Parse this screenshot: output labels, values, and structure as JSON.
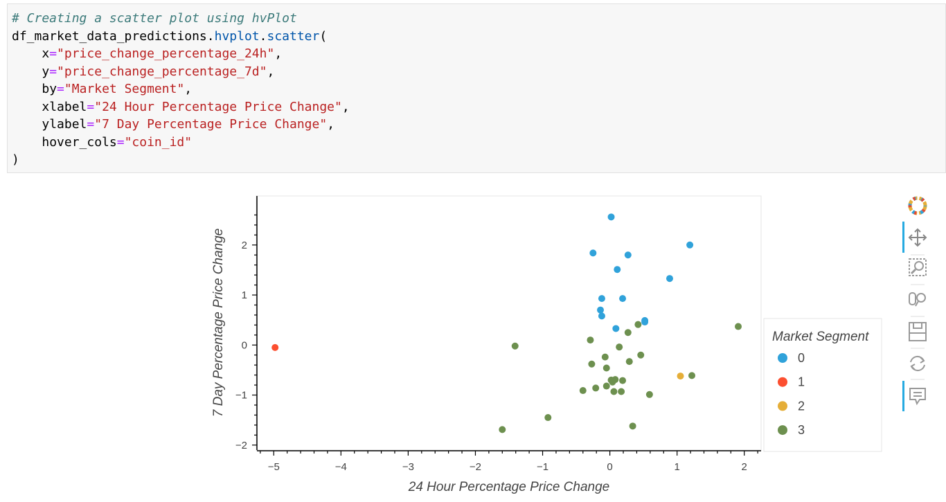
{
  "code": {
    "comment": "# Creating a scatter plot using hvPlot",
    "line2_obj": "df_market_data_predictions.",
    "line2_attr1": "hvplot",
    "line2_dot": ".",
    "line2_attr2": "scatter",
    "line2_paren": "(",
    "args": [
      {
        "key": "x",
        "val": "\"price_change_percentage_24h\"",
        "trail": ","
      },
      {
        "key": "y",
        "val": "\"price_change_percentage_7d\"",
        "trail": ","
      },
      {
        "key": "by",
        "val": "\"Market Segment\"",
        "trail": ","
      },
      {
        "key": "xlabel",
        "val": "\"24 Hour Percentage Price Change\"",
        "trail": ","
      },
      {
        "key": "ylabel",
        "val": "\"7 Day Percentage Price Change\"",
        "trail": ","
      },
      {
        "key": "hover_cols",
        "val": "\"coin_id\"",
        "trail": ""
      }
    ],
    "eq": "=",
    "close": ")"
  },
  "chart_data": {
    "type": "scatter",
    "xlabel": "24 Hour Percentage Price Change",
    "ylabel": "7 Day Percentage Price Change",
    "xlim": [
      -5.25,
      2.25
    ],
    "ylim": [
      -2.1,
      2.98
    ],
    "xticks": [
      -5,
      -4,
      -3,
      -2,
      -1,
      0,
      1,
      2
    ],
    "yticks": [
      -2,
      -1,
      0,
      1,
      2
    ],
    "grid": false,
    "legend_title": "Market Segment",
    "legend_position": "right",
    "series": [
      {
        "name": "0",
        "color": "#30a2da",
        "points": [
          [
            0.02,
            2.56
          ],
          [
            1.19,
            2.0
          ],
          [
            -0.25,
            1.84
          ],
          [
            0.27,
            1.8
          ],
          [
            0.11,
            1.51
          ],
          [
            0.89,
            1.33
          ],
          [
            -0.12,
            0.93
          ],
          [
            0.19,
            0.93
          ],
          [
            -0.14,
            0.7
          ],
          [
            -0.12,
            0.58
          ],
          [
            0.52,
            0.49
          ],
          [
            0.52,
            0.46
          ],
          [
            0.09,
            0.33
          ]
        ]
      },
      {
        "name": "1",
        "color": "#fc4f30",
        "points": [
          [
            -4.98,
            -0.05
          ]
        ]
      },
      {
        "name": "2",
        "color": "#e5ae38",
        "points": [
          [
            1.05,
            -0.62
          ]
        ]
      },
      {
        "name": "3",
        "color": "#6d904f",
        "points": [
          [
            1.91,
            0.37
          ],
          [
            0.42,
            0.41
          ],
          [
            0.27,
            0.25
          ],
          [
            -0.29,
            0.1
          ],
          [
            -1.41,
            -0.02
          ],
          [
            0.14,
            -0.04
          ],
          [
            0.46,
            -0.2
          ],
          [
            -0.07,
            -0.24
          ],
          [
            0.29,
            -0.33
          ],
          [
            -0.27,
            -0.38
          ],
          [
            -0.05,
            -0.46
          ],
          [
            1.22,
            -0.61
          ],
          [
            0.02,
            -0.7
          ],
          [
            0.08,
            -0.69
          ],
          [
            0.19,
            -0.71
          ],
          [
            0.04,
            -0.74
          ],
          [
            -0.05,
            -0.82
          ],
          [
            -0.21,
            -0.86
          ],
          [
            -0.4,
            -0.91
          ],
          [
            0.06,
            -0.93
          ],
          [
            0.17,
            -0.93
          ],
          [
            0.59,
            -0.99
          ],
          [
            -0.92,
            -1.45
          ],
          [
            0.34,
            -1.62
          ],
          [
            -1.6,
            -1.69
          ]
        ]
      }
    ]
  },
  "toolbar": {
    "logo": "bokeh-logo-icon",
    "tools": [
      "pan-icon",
      "box-zoom-icon",
      "wheel-zoom-icon",
      "save-icon",
      "reset-icon",
      "hover-icon"
    ],
    "accent": "#26aae1"
  }
}
